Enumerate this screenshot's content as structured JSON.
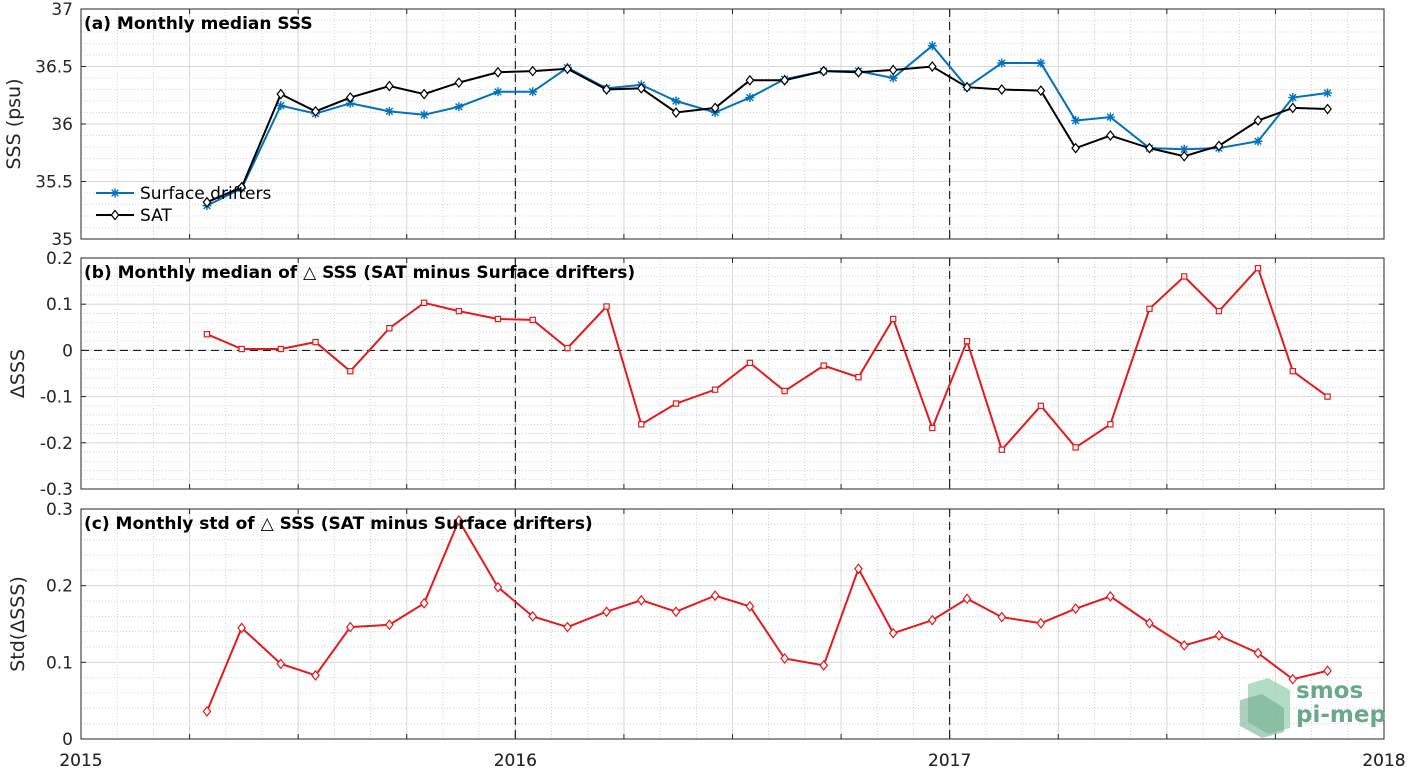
{
  "chart_data": [
    {
      "type": "line",
      "title": "(a) Monthly median SSS",
      "xlabel": "",
      "ylabel": "SSS (psu)",
      "xlim": [
        2015,
        2018
      ],
      "ylim": [
        35,
        37
      ],
      "yticks": [
        "35",
        "35.5",
        "36",
        "36.5",
        "37"
      ],
      "ytick_values": [
        35,
        35.5,
        36,
        36.5,
        37
      ],
      "xticks": [
        "2015",
        "2016",
        "2017",
        "2018"
      ],
      "xtick_values": [
        2015,
        2016,
        2017,
        2018
      ],
      "grid": true,
      "legend": "bottom-left",
      "x": [
        2015.29,
        2015.37,
        2015.46,
        2015.54,
        2015.62,
        2015.71,
        2015.79,
        2015.87,
        2015.96,
        2016.04,
        2016.12,
        2016.21,
        2016.29,
        2016.37,
        2016.46,
        2016.54,
        2016.62,
        2016.71,
        2016.79,
        2016.87,
        2016.96,
        2017.04,
        2017.12,
        2017.21,
        2017.29,
        2017.37,
        2017.46,
        2017.54,
        2017.62,
        2017.71,
        2017.79,
        2017.87
      ],
      "series": [
        {
          "name": "Surface drifters",
          "color": "#0072bd",
          "marker": "star",
          "values": [
            35.29,
            35.44,
            36.16,
            36.09,
            36.18,
            36.11,
            36.08,
            36.15,
            36.28,
            36.28,
            36.49,
            36.31,
            36.34,
            36.2,
            36.1,
            36.23,
            36.39,
            36.46,
            36.46,
            36.4,
            36.68,
            36.32,
            36.53,
            36.53,
            36.03,
            36.06,
            35.79,
            35.78,
            35.79,
            35.85,
            36.23,
            36.27
          ]
        },
        {
          "name": "SAT",
          "color": "#000000",
          "marker": "diamond",
          "values": [
            35.32,
            35.45,
            36.26,
            36.11,
            36.23,
            36.33,
            36.26,
            36.36,
            36.45,
            36.46,
            36.48,
            36.3,
            36.31,
            36.1,
            36.14,
            36.38,
            36.38,
            36.46,
            36.45,
            36.47,
            36.5,
            36.32,
            36.3,
            36.29,
            35.79,
            35.9,
            35.79,
            35.72,
            35.81,
            36.03,
            36.14,
            36.13
          ]
        }
      ]
    },
    {
      "type": "line",
      "title": "(b) Monthly median of △ SSS (SAT minus Surface drifters)",
      "xlabel": "",
      "ylabel": "ΔSSS",
      "xlim": [
        2015,
        2018
      ],
      "ylim": [
        -0.3,
        0.2
      ],
      "yticks": [
        "-0.3",
        "-0.2",
        "-0.1",
        "0",
        "0.1",
        "0.2"
      ],
      "ytick_values": [
        -0.3,
        -0.2,
        -0.1,
        0,
        0.1,
        0.2
      ],
      "grid": true,
      "x": [
        2015.29,
        2015.37,
        2015.46,
        2015.54,
        2015.62,
        2015.71,
        2015.79,
        2015.87,
        2015.96,
        2016.04,
        2016.12,
        2016.21,
        2016.29,
        2016.37,
        2016.46,
        2016.54,
        2016.62,
        2016.71,
        2016.79,
        2016.87,
        2016.96,
        2017.04,
        2017.12,
        2017.21,
        2017.29,
        2017.37,
        2017.46,
        2017.54,
        2017.62,
        2017.71,
        2017.79,
        2017.87
      ],
      "series": [
        {
          "name": "",
          "color": "#e41a1c",
          "marker": "square",
          "values": [
            0.035,
            0.003,
            0.003,
            0.018,
            -0.045,
            0.048,
            0.103,
            0.085,
            0.068,
            0.066,
            0.005,
            0.095,
            -0.16,
            -0.115,
            -0.085,
            -0.027,
            -0.088,
            -0.033,
            -0.058,
            0.068,
            -0.168,
            0.02,
            -0.215,
            -0.12,
            -0.21,
            -0.16,
            0.09,
            0.16,
            0.085,
            0.178,
            -0.045,
            -0.1
          ]
        }
      ]
    },
    {
      "type": "line",
      "title": "(c) Monthly std of △ SSS (SAT minus Surface drifters)",
      "xlabel": "",
      "ylabel": "Std(ΔSSS)",
      "xlim": [
        2015,
        2018
      ],
      "ylim": [
        0,
        0.3
      ],
      "yticks": [
        "0",
        "0.1",
        "0.2",
        "0.3"
      ],
      "ytick_values": [
        0,
        0.1,
        0.2,
        0.3
      ],
      "xticks": [
        "2015",
        "2016",
        "2017",
        "2018"
      ],
      "xtick_values": [
        2015,
        2016,
        2017,
        2018
      ],
      "grid": true,
      "x": [
        2015.29,
        2015.37,
        2015.46,
        2015.54,
        2015.62,
        2015.71,
        2015.79,
        2015.87,
        2015.96,
        2016.04,
        2016.12,
        2016.21,
        2016.29,
        2016.37,
        2016.46,
        2016.54,
        2016.62,
        2016.71,
        2016.79,
        2016.87,
        2016.96,
        2017.04,
        2017.12,
        2017.21,
        2017.29,
        2017.37,
        2017.46,
        2017.54,
        2017.62,
        2017.71,
        2017.79,
        2017.87
      ],
      "series": [
        {
          "name": "",
          "color": "#e41a1c",
          "marker": "diamond",
          "values": [
            0.036,
            0.145,
            0.098,
            0.083,
            0.146,
            0.149,
            0.177,
            0.285,
            0.198,
            0.16,
            0.146,
            0.166,
            0.181,
            0.166,
            0.187,
            0.173,
            0.105,
            0.096,
            0.222,
            0.138,
            0.155,
            0.183,
            0.159,
            0.151,
            0.17,
            0.186,
            0.151,
            0.122,
            0.135,
            0.112,
            0.078,
            0.089
          ]
        }
      ]
    }
  ],
  "logo": {
    "line1": "smos",
    "line2": "pi-mep",
    "color": "#6aa88a"
  }
}
